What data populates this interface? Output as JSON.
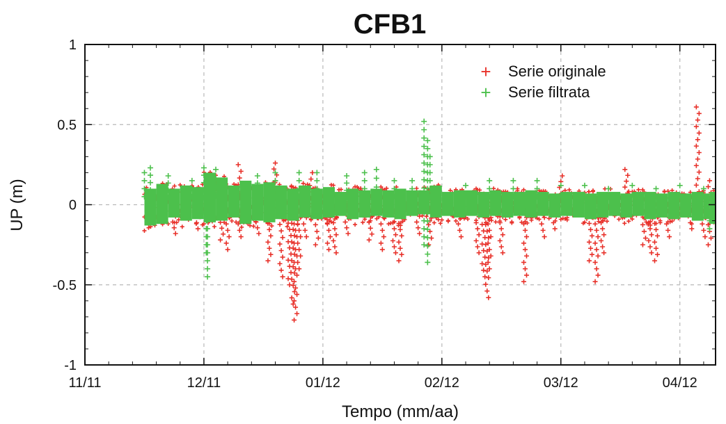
{
  "chart_data": {
    "type": "scatter",
    "title": "CFB1",
    "xlabel": "Tempo (mm/aa)",
    "ylabel": "UP (m)",
    "x_ticks": [
      "11/11",
      "12/11",
      "01/12",
      "02/12",
      "03/12",
      "04/12"
    ],
    "y_ticks": [
      "1",
      "0.5",
      "0",
      "-0.5",
      "-1"
    ],
    "xlim": [
      0,
      5.3
    ],
    "ylim": [
      -1,
      1
    ],
    "grid": true,
    "legend_position": "top-right",
    "marker": "+",
    "series": [
      {
        "name": "Serie originale",
        "color": "#e8312a",
        "points": [
          [
            0.55,
            -0.12
          ],
          [
            0.75,
            -0.18
          ],
          [
            0.95,
            -0.15
          ],
          [
            1.15,
            -0.22
          ],
          [
            1.2,
            -0.28
          ],
          [
            1.3,
            0.25
          ],
          [
            1.3,
            -0.2
          ],
          [
            1.45,
            -0.18
          ],
          [
            1.55,
            -0.35
          ],
          [
            1.6,
            0.26
          ],
          [
            1.65,
            -0.45
          ],
          [
            1.72,
            -0.5
          ],
          [
            1.75,
            -0.62
          ],
          [
            1.77,
            -0.72
          ],
          [
            1.8,
            -0.4
          ],
          [
            1.85,
            -0.2
          ],
          [
            1.9,
            0.2
          ],
          [
            1.95,
            -0.25
          ],
          [
            2.05,
            -0.28
          ],
          [
            2.1,
            -0.3
          ],
          [
            2.2,
            -0.18
          ],
          [
            2.4,
            -0.22
          ],
          [
            2.5,
            -0.28
          ],
          [
            2.6,
            -0.3
          ],
          [
            2.65,
            -0.35
          ],
          [
            2.8,
            -0.18
          ],
          [
            2.9,
            -0.25
          ],
          [
            3.15,
            -0.2
          ],
          [
            3.3,
            -0.3
          ],
          [
            3.35,
            -0.45
          ],
          [
            3.38,
            -0.58
          ],
          [
            3.4,
            -0.4
          ],
          [
            3.5,
            -0.3
          ],
          [
            3.7,
            -0.48
          ],
          [
            3.85,
            -0.2
          ],
          [
            3.95,
            -0.15
          ],
          [
            4.0,
            0.18
          ],
          [
            4.25,
            -0.35
          ],
          [
            4.3,
            -0.48
          ],
          [
            4.35,
            -0.3
          ],
          [
            4.55,
            0.22
          ],
          [
            4.7,
            -0.25
          ],
          [
            4.75,
            -0.3
          ],
          [
            4.8,
            -0.35
          ],
          [
            4.9,
            -0.2
          ],
          [
            5.1,
            -0.15
          ],
          [
            5.2,
            -0.2
          ],
          [
            5.25,
            0.15
          ],
          [
            5.15,
            0.61
          ],
          [
            5.25,
            -0.25
          ]
        ]
      },
      {
        "name": "Serie filtrata",
        "color": "#4cc04c",
        "points": [
          [
            0.5,
            0.2
          ],
          [
            0.55,
            0.23
          ],
          [
            0.7,
            0.18
          ],
          [
            0.9,
            0.15
          ],
          [
            1.0,
            0.23
          ],
          [
            1.1,
            0.22
          ],
          [
            1.02,
            -0.3
          ],
          [
            1.03,
            -0.45
          ],
          [
            1.45,
            0.18
          ],
          [
            1.6,
            0.2
          ],
          [
            1.8,
            0.2
          ],
          [
            1.95,
            0.2
          ],
          [
            2.2,
            0.18
          ],
          [
            2.35,
            0.2
          ],
          [
            2.45,
            0.22
          ],
          [
            2.6,
            0.15
          ],
          [
            2.75,
            0.15
          ],
          [
            2.85,
            0.52
          ],
          [
            2.88,
            0.4
          ],
          [
            2.9,
            0.3
          ],
          [
            2.85,
            -0.25
          ],
          [
            2.88,
            -0.36
          ],
          [
            3.2,
            0.12
          ],
          [
            3.4,
            0.15
          ],
          [
            3.6,
            0.15
          ],
          [
            3.8,
            0.15
          ],
          [
            4.0,
            0.12
          ],
          [
            4.2,
            0.12
          ],
          [
            4.4,
            0.1
          ],
          [
            4.6,
            0.12
          ],
          [
            4.8,
            0.1
          ],
          [
            5.0,
            0.12
          ],
          [
            5.2,
            0.1
          ],
          [
            5.25,
            -0.15
          ]
        ],
        "band": [
          [
            0.5,
            -0.13,
            0.1
          ],
          [
            0.6,
            -0.12,
            0.13
          ],
          [
            0.7,
            -0.08,
            0.1
          ],
          [
            0.8,
            -0.1,
            0.12
          ],
          [
            0.9,
            -0.09,
            0.11
          ],
          [
            1.0,
            -0.11,
            0.2
          ],
          [
            1.1,
            -0.1,
            0.17
          ],
          [
            1.2,
            -0.08,
            0.12
          ],
          [
            1.3,
            -0.12,
            0.15
          ],
          [
            1.4,
            -0.1,
            0.13
          ],
          [
            1.5,
            -0.11,
            0.14
          ],
          [
            1.6,
            -0.09,
            0.12
          ],
          [
            1.7,
            -0.1,
            0.1
          ],
          [
            1.8,
            -0.08,
            0.12
          ],
          [
            1.9,
            -0.09,
            0.1
          ],
          [
            2.0,
            -0.08,
            0.11
          ],
          [
            2.1,
            -0.07,
            0.08
          ],
          [
            2.2,
            -0.09,
            0.1
          ],
          [
            2.3,
            -0.08,
            0.09
          ],
          [
            2.4,
            -0.07,
            0.1
          ],
          [
            2.5,
            -0.08,
            0.09
          ],
          [
            2.6,
            -0.09,
            0.1
          ],
          [
            2.7,
            -0.07,
            0.09
          ],
          [
            2.8,
            -0.06,
            0.09
          ],
          [
            2.9,
            -0.08,
            0.12
          ],
          [
            3.0,
            -0.07,
            0.08
          ],
          [
            3.1,
            -0.08,
            0.09
          ],
          [
            3.2,
            -0.07,
            0.09
          ],
          [
            3.3,
            -0.08,
            0.08
          ],
          [
            3.4,
            -0.07,
            0.09
          ],
          [
            3.5,
            -0.08,
            0.08
          ],
          [
            3.6,
            -0.07,
            0.08
          ],
          [
            3.7,
            -0.08,
            0.09
          ],
          [
            3.8,
            -0.07,
            0.08
          ],
          [
            3.9,
            -0.08,
            0.07
          ],
          [
            4.0,
            -0.07,
            0.08
          ],
          [
            4.1,
            -0.08,
            0.08
          ],
          [
            4.2,
            -0.09,
            0.07
          ],
          [
            4.3,
            -0.08,
            0.08
          ],
          [
            4.4,
            -0.07,
            0.08
          ],
          [
            4.5,
            -0.08,
            0.07
          ],
          [
            4.6,
            -0.07,
            0.08
          ],
          [
            4.7,
            -0.09,
            0.08
          ],
          [
            4.8,
            -0.08,
            0.07
          ],
          [
            4.9,
            -0.09,
            0.08
          ],
          [
            5.0,
            -0.08,
            0.07
          ],
          [
            5.1,
            -0.1,
            0.08
          ],
          [
            5.2,
            -0.09,
            0.07
          ],
          [
            5.25,
            -0.12,
            0.08
          ]
        ]
      }
    ]
  }
}
